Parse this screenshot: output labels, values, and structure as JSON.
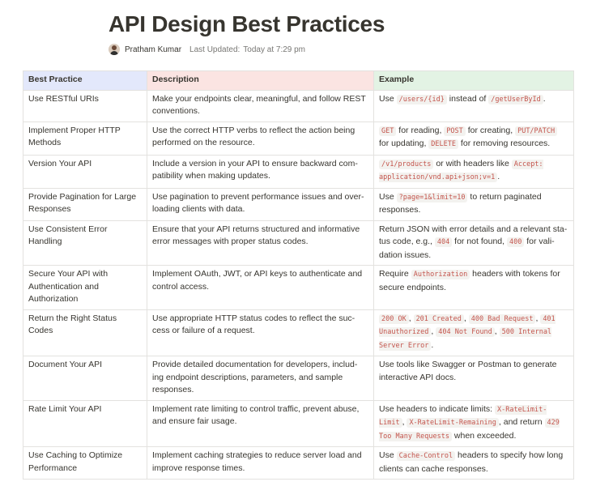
{
  "document": {
    "title": "API Design Best Practices",
    "author": "Pratham Kumar",
    "last_updated_label": "Last Updated:",
    "last_updated_value": "Today at 7:29 pm"
  },
  "table": {
    "headers": [
      "Best Practice",
      "Description",
      "Example"
    ],
    "header_colors": [
      "#e3e8fb",
      "#fbe4e2",
      "#e3f3e4"
    ],
    "rows": [
      {
        "practice": "Use RESTful URIs",
        "description": "Make your endpoints clear, meaningful, and follow REST conventions.",
        "example": [
          {
            "t": "Use "
          },
          {
            "c": "/users/{id}"
          },
          {
            "t": " instead of "
          },
          {
            "c": "/getUserById"
          },
          {
            "t": "."
          }
        ]
      },
      {
        "practice": "Implement Proper HTTP Methods",
        "description": "Use the correct HTTP verbs to reflect the action being performed on the resource.",
        "example": [
          {
            "c": "GET"
          },
          {
            "t": " for reading, "
          },
          {
            "c": "POST"
          },
          {
            "t": " for creating, "
          },
          {
            "c": "PUT/PATCH"
          },
          {
            "t": " for updating, "
          },
          {
            "c": "DELETE"
          },
          {
            "t": " for removing resources."
          }
        ]
      },
      {
        "practice": "Version Your API",
        "description": "Include a version in your API to ensure backward com-patibility when making updates.",
        "example": [
          {
            "c": "/v1/products"
          },
          {
            "t": " or with headers like "
          },
          {
            "c": "Accept: application/vnd.api+json;v=1"
          },
          {
            "t": "."
          }
        ]
      },
      {
        "practice": "Provide Pagination for Large Responses",
        "description": "Use pagination to prevent performance issues and over-loading clients with data.",
        "example": [
          {
            "t": "Use "
          },
          {
            "c": "?page=1&limit=10"
          },
          {
            "t": " to return paginated responses."
          }
        ]
      },
      {
        "practice": "Use Consistent Error Handling",
        "description": "Ensure that your API returns structured and informative error messages with proper status codes.",
        "example": [
          {
            "t": "Return JSON with error details and a relevant sta-tus code, e.g., "
          },
          {
            "c": "404"
          },
          {
            "t": " for not found, "
          },
          {
            "c": "400"
          },
          {
            "t": " for vali-dation issues."
          }
        ]
      },
      {
        "practice": "Secure Your API with Authentication and Authorization",
        "description": "Implement OAuth, JWT, or API keys to authenticate and control access.",
        "example": [
          {
            "t": "Require "
          },
          {
            "c": "Authorization"
          },
          {
            "t": " headers with tokens for secure endpoints."
          }
        ]
      },
      {
        "practice": "Return the Right Status Codes",
        "description": "Use appropriate HTTP status codes to reflect the suc-cess or failure of a request.",
        "example": [
          {
            "c": "200 OK"
          },
          {
            "t": ", "
          },
          {
            "c": "201 Created"
          },
          {
            "t": ", "
          },
          {
            "c": "400 Bad Request"
          },
          {
            "t": ", "
          },
          {
            "c": "401 Unauthorized"
          },
          {
            "t": ", "
          },
          {
            "c": "404 Not Found"
          },
          {
            "t": ", "
          },
          {
            "c": "500 Internal Server Error"
          },
          {
            "t": "."
          }
        ]
      },
      {
        "practice": "Document Your API",
        "description": "Provide detailed documentation for developers, includ-ing endpoint descriptions, parameters, and sample responses.",
        "example": [
          {
            "t": "Use tools like Swagger or Postman to generate interactive API docs."
          }
        ]
      },
      {
        "practice": "Rate Limit Your API",
        "description": "Implement rate limiting to control traffic, prevent abuse, and ensure fair usage.",
        "example": [
          {
            "t": "Use headers to indicate limits: "
          },
          {
            "c": "X-RateLimit-Limit"
          },
          {
            "t": ", "
          },
          {
            "c": "X-RateLimit-Remaining"
          },
          {
            "t": ", and return "
          },
          {
            "c": "429 Too Many Requests"
          },
          {
            "t": " when exceeded."
          }
        ]
      },
      {
        "practice": "Use Caching to Optimize Performance",
        "description": "Implement caching strategies to reduce server load and improve response times.",
        "example": [
          {
            "t": "Use "
          },
          {
            "c": "Cache-Control"
          },
          {
            "t": " headers to specify how long clients can cache responses."
          }
        ]
      }
    ]
  }
}
